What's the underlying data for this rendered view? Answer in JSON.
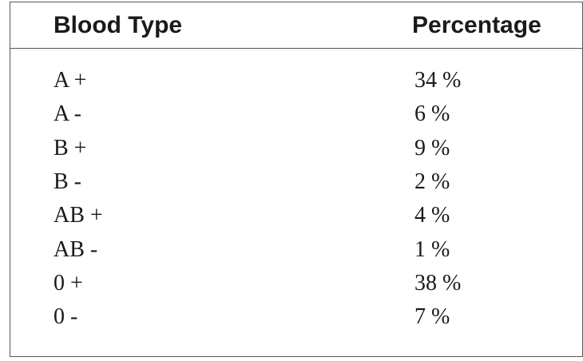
{
  "table": {
    "header": [
      "Blood Type",
      "Percentage"
    ],
    "rows": [
      [
        "A +",
        "34 %"
      ],
      [
        "A -",
        "6 %"
      ],
      [
        "B +",
        "9 %"
      ],
      [
        "B -",
        "2 %"
      ],
      [
        "AB +",
        "4 %"
      ],
      [
        "AB -",
        "1 %"
      ],
      [
        "0 +",
        "38 %"
      ],
      [
        "0 -",
        "7 %"
      ]
    ]
  }
}
